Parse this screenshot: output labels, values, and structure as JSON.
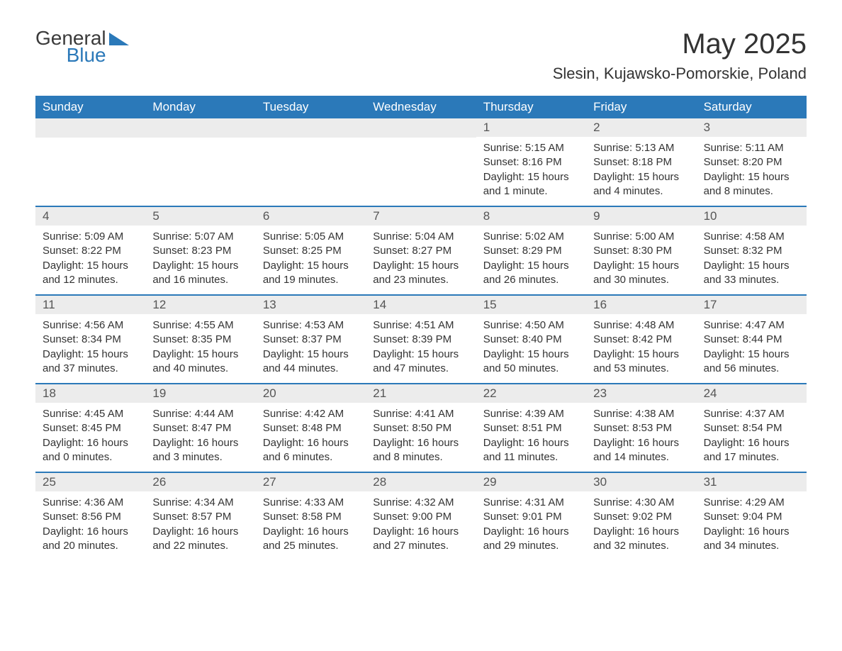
{
  "brand": {
    "word1": "General",
    "word2": "Blue",
    "accent_color": "#2b79b9"
  },
  "title": "May 2025",
  "location": "Slesin, Kujawsko-Pomorskie, Poland",
  "colors": {
    "header_bg": "#2b79b9",
    "header_text": "#ffffff",
    "daynum_bg": "#ececec",
    "text": "#333333",
    "border": "#2b79b9",
    "background": "#ffffff"
  },
  "weekdays": [
    "Sunday",
    "Monday",
    "Tuesday",
    "Wednesday",
    "Thursday",
    "Friday",
    "Saturday"
  ],
  "weeks": [
    [
      {
        "blank": true
      },
      {
        "blank": true
      },
      {
        "blank": true
      },
      {
        "blank": true
      },
      {
        "n": "1",
        "sunrise": "5:15 AM",
        "sunset": "8:16 PM",
        "daylight": "15 hours and 1 minute."
      },
      {
        "n": "2",
        "sunrise": "5:13 AM",
        "sunset": "8:18 PM",
        "daylight": "15 hours and 4 minutes."
      },
      {
        "n": "3",
        "sunrise": "5:11 AM",
        "sunset": "8:20 PM",
        "daylight": "15 hours and 8 minutes."
      }
    ],
    [
      {
        "n": "4",
        "sunrise": "5:09 AM",
        "sunset": "8:22 PM",
        "daylight": "15 hours and 12 minutes."
      },
      {
        "n": "5",
        "sunrise": "5:07 AM",
        "sunset": "8:23 PM",
        "daylight": "15 hours and 16 minutes."
      },
      {
        "n": "6",
        "sunrise": "5:05 AM",
        "sunset": "8:25 PM",
        "daylight": "15 hours and 19 minutes."
      },
      {
        "n": "7",
        "sunrise": "5:04 AM",
        "sunset": "8:27 PM",
        "daylight": "15 hours and 23 minutes."
      },
      {
        "n": "8",
        "sunrise": "5:02 AM",
        "sunset": "8:29 PM",
        "daylight": "15 hours and 26 minutes."
      },
      {
        "n": "9",
        "sunrise": "5:00 AM",
        "sunset": "8:30 PM",
        "daylight": "15 hours and 30 minutes."
      },
      {
        "n": "10",
        "sunrise": "4:58 AM",
        "sunset": "8:32 PM",
        "daylight": "15 hours and 33 minutes."
      }
    ],
    [
      {
        "n": "11",
        "sunrise": "4:56 AM",
        "sunset": "8:34 PM",
        "daylight": "15 hours and 37 minutes."
      },
      {
        "n": "12",
        "sunrise": "4:55 AM",
        "sunset": "8:35 PM",
        "daylight": "15 hours and 40 minutes."
      },
      {
        "n": "13",
        "sunrise": "4:53 AM",
        "sunset": "8:37 PM",
        "daylight": "15 hours and 44 minutes."
      },
      {
        "n": "14",
        "sunrise": "4:51 AM",
        "sunset": "8:39 PM",
        "daylight": "15 hours and 47 minutes."
      },
      {
        "n": "15",
        "sunrise": "4:50 AM",
        "sunset": "8:40 PM",
        "daylight": "15 hours and 50 minutes."
      },
      {
        "n": "16",
        "sunrise": "4:48 AM",
        "sunset": "8:42 PM",
        "daylight": "15 hours and 53 minutes."
      },
      {
        "n": "17",
        "sunrise": "4:47 AM",
        "sunset": "8:44 PM",
        "daylight": "15 hours and 56 minutes."
      }
    ],
    [
      {
        "n": "18",
        "sunrise": "4:45 AM",
        "sunset": "8:45 PM",
        "daylight": "16 hours and 0 minutes."
      },
      {
        "n": "19",
        "sunrise": "4:44 AM",
        "sunset": "8:47 PM",
        "daylight": "16 hours and 3 minutes."
      },
      {
        "n": "20",
        "sunrise": "4:42 AM",
        "sunset": "8:48 PM",
        "daylight": "16 hours and 6 minutes."
      },
      {
        "n": "21",
        "sunrise": "4:41 AM",
        "sunset": "8:50 PM",
        "daylight": "16 hours and 8 minutes."
      },
      {
        "n": "22",
        "sunrise": "4:39 AM",
        "sunset": "8:51 PM",
        "daylight": "16 hours and 11 minutes."
      },
      {
        "n": "23",
        "sunrise": "4:38 AM",
        "sunset": "8:53 PM",
        "daylight": "16 hours and 14 minutes."
      },
      {
        "n": "24",
        "sunrise": "4:37 AM",
        "sunset": "8:54 PM",
        "daylight": "16 hours and 17 minutes."
      }
    ],
    [
      {
        "n": "25",
        "sunrise": "4:36 AM",
        "sunset": "8:56 PM",
        "daylight": "16 hours and 20 minutes."
      },
      {
        "n": "26",
        "sunrise": "4:34 AM",
        "sunset": "8:57 PM",
        "daylight": "16 hours and 22 minutes."
      },
      {
        "n": "27",
        "sunrise": "4:33 AM",
        "sunset": "8:58 PM",
        "daylight": "16 hours and 25 minutes."
      },
      {
        "n": "28",
        "sunrise": "4:32 AM",
        "sunset": "9:00 PM",
        "daylight": "16 hours and 27 minutes."
      },
      {
        "n": "29",
        "sunrise": "4:31 AM",
        "sunset": "9:01 PM",
        "daylight": "16 hours and 29 minutes."
      },
      {
        "n": "30",
        "sunrise": "4:30 AM",
        "sunset": "9:02 PM",
        "daylight": "16 hours and 32 minutes."
      },
      {
        "n": "31",
        "sunrise": "4:29 AM",
        "sunset": "9:04 PM",
        "daylight": "16 hours and 34 minutes."
      }
    ]
  ],
  "labels": {
    "sunrise": "Sunrise:",
    "sunset": "Sunset:",
    "daylight": "Daylight:"
  }
}
